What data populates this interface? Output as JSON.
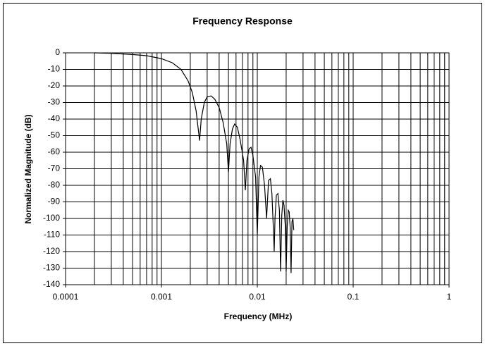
{
  "chart_data": {
    "type": "line",
    "title": "Frequency Response",
    "x_label": "Frequency (MHz)",
    "y_label": "Normalized Magnitude (dB)",
    "xscale": "log",
    "grid": true,
    "color": "#000000",
    "xlim": [
      0.0001,
      1
    ],
    "xticks": [
      0.0001,
      0.001,
      0.01,
      0.1,
      1
    ],
    "ylim": [
      -140,
      0
    ],
    "yticks": [
      0,
      -10,
      -20,
      -30,
      -40,
      -50,
      -60,
      -70,
      -80,
      -90,
      -100,
      -110,
      -120,
      -130,
      -140
    ],
    "x": [
      0.0002,
      0.0003,
      0.0005,
      0.0007,
      0.001,
      0.0013,
      0.0016,
      0.0019,
      0.0021,
      0.0023,
      0.0025,
      0.0026,
      0.0028,
      0.003,
      0.0033,
      0.0036,
      0.004,
      0.0044,
      0.0048,
      0.005,
      0.0052,
      0.0055,
      0.0058,
      0.0062,
      0.0066,
      0.0072,
      0.0075,
      0.0078,
      0.0082,
      0.0086,
      0.009,
      0.0096,
      0.01,
      0.0104,
      0.0108,
      0.0113,
      0.0119,
      0.0125,
      0.0131,
      0.0137,
      0.0142,
      0.0148,
      0.015,
      0.0153,
      0.0158,
      0.0164,
      0.017,
      0.0175,
      0.018,
      0.0185,
      0.019,
      0.0196,
      0.02,
      0.0205,
      0.021,
      0.0215,
      0.022,
      0.0225,
      0.023,
      0.0235,
      0.024
    ],
    "values": [
      0,
      -0.3,
      -1,
      -1.7,
      -3.5,
      -6,
      -10,
      -17,
      -24,
      -35,
      -53,
      -40,
      -30,
      -26.5,
      -26,
      -28,
      -33,
      -42,
      -55,
      -72,
      -55,
      -46,
      -43,
      -45,
      -52,
      -65,
      -83,
      -65,
      -58,
      -57,
      -62,
      -75,
      -110,
      -75,
      -68,
      -69,
      -80,
      -100,
      -77,
      -76,
      -85,
      -110,
      -120,
      -100,
      -86,
      -85,
      -95,
      -132,
      -98,
      -89,
      -92,
      -105,
      -132,
      -105,
      -95,
      -96,
      -105,
      -133,
      -102,
      -100,
      -107
    ]
  }
}
